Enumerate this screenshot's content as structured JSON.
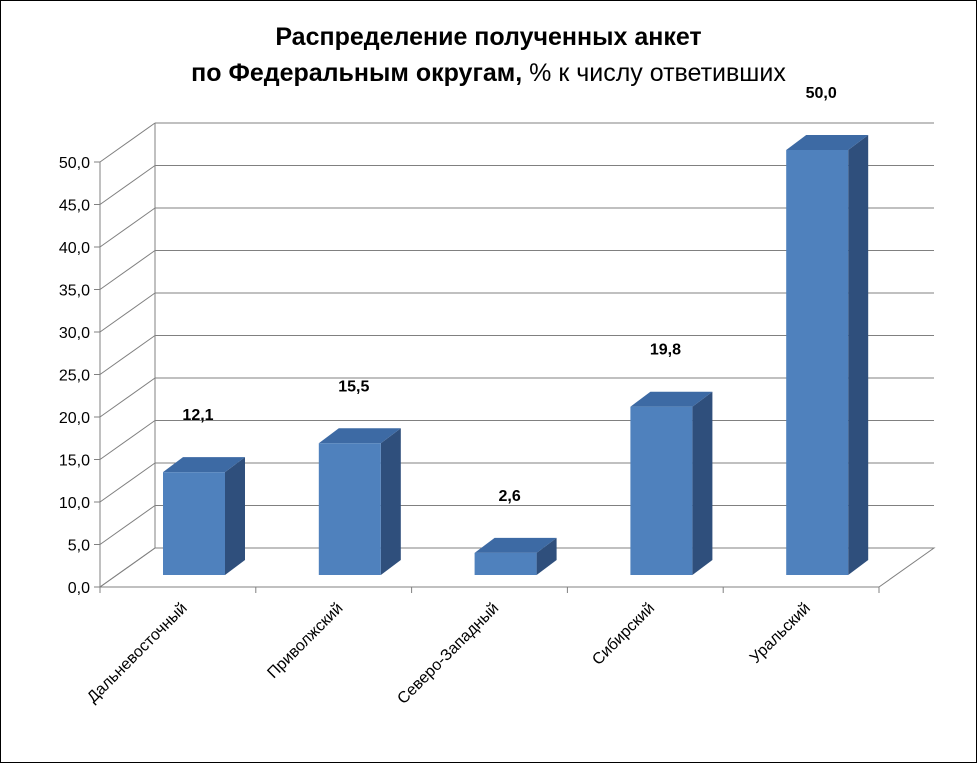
{
  "chart_data": {
    "type": "bar",
    "title_line1": "Распределение полученных анкет",
    "title_line2_bold": "по Федеральным округам,",
    "title_line2_normal": " % к числу ответивших",
    "categories": [
      "Дальневосточный",
      "Приволжский",
      "Северо-Западный",
      "Сибирский",
      "Уральский"
    ],
    "values": [
      12.1,
      15.5,
      2.6,
      19.8,
      50.0
    ],
    "data_labels": [
      "12,1",
      "15,5",
      "2,6",
      "19,8",
      "50,0"
    ],
    "yticks": [
      "0,0",
      "5,0",
      "10,0",
      "15,0",
      "20,0",
      "25,0",
      "30,0",
      "35,0",
      "40,0",
      "45,0",
      "50,0"
    ],
    "ylim": [
      0,
      50
    ],
    "grid": true,
    "legend": false,
    "bar_colors": {
      "front": "#4f81bd",
      "side": "#2f4f7c",
      "top": "#3d6aa4"
    },
    "grid_color": "#808080"
  }
}
